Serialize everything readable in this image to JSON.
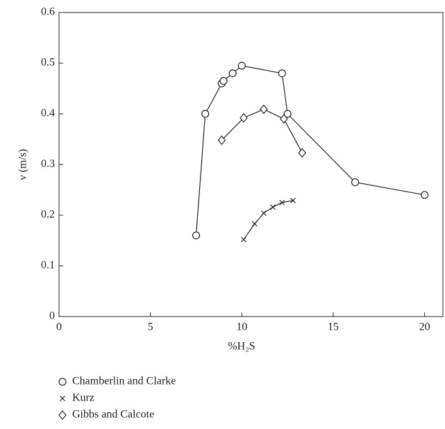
{
  "chart_data": {
    "type": "line",
    "x_label": "%H₂S",
    "y_label": "ν (m/s)",
    "xlim": [
      0,
      21
    ],
    "xticks": [
      0,
      5,
      10,
      15,
      20
    ],
    "ylim": [
      0,
      0.6
    ],
    "yticks": [
      0,
      0.1,
      0.2,
      0.3,
      0.4,
      0.5,
      0.6
    ],
    "series": [
      {
        "name": "Chamberlin and Clarke",
        "color": "#222222",
        "marker": "circle",
        "x": [
          7.5,
          8.0,
          8.9,
          9.0,
          9.5,
          10.0,
          12.2,
          12.5,
          16.2,
          20.0
        ],
        "values": [
          0.16,
          0.4,
          0.46,
          0.465,
          0.48,
          0.495,
          0.48,
          0.4,
          0.265,
          0.24
        ]
      },
      {
        "name": "Kurz",
        "color": "#222222",
        "marker": "x",
        "x": [
          10.1,
          10.7,
          11.2,
          11.7,
          12.2,
          12.8
        ],
        "values": [
          0.152,
          0.183,
          0.204,
          0.216,
          0.225,
          0.229
        ]
      },
      {
        "name": "Gibbs and Calcote",
        "color": "#222222",
        "marker": "diamond",
        "x": [
          8.9,
          10.1,
          11.2,
          12.3,
          13.3
        ],
        "values": [
          0.348,
          0.392,
          0.409,
          0.39,
          0.323
        ]
      }
    ]
  }
}
